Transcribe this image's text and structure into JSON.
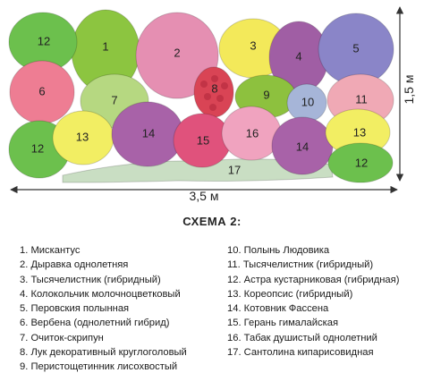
{
  "diagram": {
    "dimensions": {
      "width_label": "3,5 м",
      "height_label": "1,5 м"
    },
    "plants": [
      {
        "n": "1",
        "color": "#8cc540"
      },
      {
        "n": "2",
        "color": "#e58fb2"
      },
      {
        "n": "3",
        "color": "#f3e95a"
      },
      {
        "n": "4",
        "color": "#a05ea4"
      },
      {
        "n": "5",
        "color": "#8a85c8"
      },
      {
        "n": "6",
        "color": "#ee7d93"
      },
      {
        "n": "7",
        "color": "#b6d881"
      },
      {
        "n": "8",
        "color": "#d94455"
      },
      {
        "n": "9",
        "color": "#8dc13e"
      },
      {
        "n": "10",
        "color": "#a6b5d8"
      },
      {
        "n": "11",
        "color": "#f0a9b5"
      },
      {
        "n": "12",
        "color": "#6cc04d"
      },
      {
        "n": "13",
        "color": "#f2ee63"
      },
      {
        "n": "14",
        "color": "#a862a8"
      },
      {
        "n": "15",
        "color": "#e0527c"
      },
      {
        "n": "16",
        "color": "#f0a3bf"
      },
      {
        "n": "17",
        "color": "#c9dec3"
      }
    ]
  },
  "scheme": {
    "title": "СХЕМА 2:",
    "legend_left": [
      "1. Мискантус",
      "2. Дыравка однолетняя",
      "3. Тысячелистник (гибридный)",
      "4. Колокольчик молочноцветковый",
      "5. Перовския полынная",
      "6. Вербена (однолетний гибрид)",
      "7. Очиток-скрипун",
      "8. Лук декоративный круглоголовый",
      "9. Перистощетинник лисохвостый"
    ],
    "legend_right": [
      "10. Полынь Людовика",
      "11. Тысячелистник (гибридный)",
      "12. Астра кустарниковая (гибридная)",
      "13. Кореопсис (гибридный)",
      "14. Котовник Фассена",
      "15. Герань гималайская",
      "16. Табак душистый однолетний",
      "17. Сантолина кипарисовидная"
    ]
  }
}
